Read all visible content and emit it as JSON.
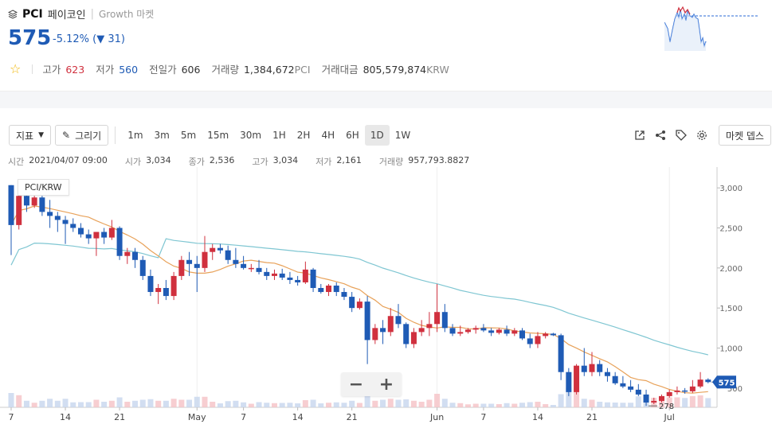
{
  "header": {
    "symbol": "PCI",
    "korean_name": "페이코인",
    "market_label": "Growth 마켓",
    "price": "575",
    "change_text": "-5.12% (",
    "change_arrow": "▼",
    "change_amount": "31)"
  },
  "stats": {
    "high_label": "고가",
    "high_value": "623",
    "low_label": "저가",
    "low_value": "560",
    "prev_label": "전일가",
    "prev_value": "606",
    "volume_label": "거래량",
    "volume_value": "1,384,672",
    "volume_unit": "PCI",
    "amount_label": "거래대금",
    "amount_value": "805,579,874",
    "amount_unit": "KRW"
  },
  "toolbar": {
    "indicator_label": "지표",
    "draw_label": "그리기",
    "intervals": [
      "1m",
      "3m",
      "5m",
      "15m",
      "30m",
      "1H",
      "2H",
      "4H",
      "6H",
      "1D",
      "1W"
    ],
    "active_interval": "1D",
    "market_depth_label": "마켓 뎁스"
  },
  "ohlc": {
    "time_label": "시간",
    "time_value": "2021/04/07 09:00",
    "open_label": "시가",
    "open_value": "3,034",
    "close_label": "종가",
    "close_value": "2,536",
    "high_label": "고가",
    "high_value": "3,034",
    "low_label": "저가",
    "low_value": "2,161",
    "volume_label": "거래량",
    "volume_value": "957,793.8827"
  },
  "chart_data": {
    "type": "candlestick",
    "pair_label": "PCI/KRW",
    "y_ticks": [
      "3,000",
      "2,500",
      "2,000",
      "1,500",
      "1,000",
      "500"
    ],
    "y_tick_values": [
      3000,
      2500,
      2000,
      1500,
      1000,
      500
    ],
    "x_ticks": [
      "7",
      "14",
      "21",
      "May",
      "7",
      "14",
      "21",
      "Jun",
      "7",
      "14",
      "21",
      "Jul"
    ],
    "x_tick_day_index": [
      0,
      7,
      14,
      24,
      30,
      37,
      44,
      55,
      61,
      68,
      75,
      85
    ],
    "current_price_label": "575",
    "current_price": 575,
    "min_marker_label": "278",
    "min_marker_value": 278,
    "candles": [
      [
        3034,
        3034,
        2161,
        2536
      ],
      [
        2536,
        3010,
        2480,
        2900
      ],
      [
        2900,
        2950,
        2700,
        2780
      ],
      [
        2780,
        2900,
        2750,
        2880
      ],
      [
        2880,
        2900,
        2650,
        2700
      ],
      [
        2700,
        2850,
        2500,
        2650
      ],
      [
        2650,
        2700,
        2450,
        2600
      ],
      [
        2600,
        2650,
        2300,
        2550
      ],
      [
        2550,
        2620,
        2450,
        2500
      ],
      [
        2500,
        2560,
        2380,
        2420
      ],
      [
        2420,
        2480,
        2300,
        2370
      ],
      [
        2370,
        2450,
        2150,
        2450
      ],
      [
        2450,
        2500,
        2300,
        2380
      ],
      [
        2380,
        2600,
        2350,
        2500
      ],
      [
        2500,
        2520,
        2100,
        2150
      ],
      [
        2150,
        2250,
        2050,
        2200
      ],
      [
        2200,
        2250,
        2000,
        2100
      ],
      [
        2100,
        2150,
        1850,
        1900
      ],
      [
        1900,
        1980,
        1650,
        1700
      ],
      [
        1700,
        1800,
        1550,
        1750
      ],
      [
        1750,
        1850,
        1600,
        1650
      ],
      [
        1650,
        1950,
        1600,
        1900
      ],
      [
        1900,
        2150,
        1850,
        2100
      ],
      [
        2100,
        2200,
        1900,
        2050
      ],
      [
        2050,
        2150,
        1700,
        2000
      ],
      [
        2000,
        2400,
        1950,
        2200
      ],
      [
        2200,
        2300,
        2100,
        2250
      ],
      [
        2250,
        2300,
        2180,
        2220
      ],
      [
        2220,
        2280,
        2050,
        2100
      ],
      [
        2100,
        2250,
        2000,
        2050
      ],
      [
        2050,
        2150,
        1980,
        2000
      ],
      [
        2000,
        2050,
        1950,
        2000
      ],
      [
        2000,
        2100,
        1920,
        1950
      ],
      [
        1950,
        2000,
        1850,
        1900
      ],
      [
        1900,
        1980,
        1850,
        1930
      ],
      [
        1930,
        1990,
        1850,
        1880
      ],
      [
        1880,
        1950,
        1800,
        1850
      ],
      [
        1850,
        1900,
        1780,
        1820
      ],
      [
        1820,
        2080,
        1800,
        1980
      ],
      [
        1980,
        2000,
        1700,
        1750
      ],
      [
        1750,
        1800,
        1680,
        1700
      ],
      [
        1700,
        1800,
        1650,
        1780
      ],
      [
        1780,
        1820,
        1650,
        1700
      ],
      [
        1700,
        1750,
        1600,
        1640
      ],
      [
        1640,
        1700,
        1450,
        1500
      ],
      [
        1500,
        1620,
        1480,
        1580
      ],
      [
        1580,
        1650,
        800,
        1100
      ],
      [
        1100,
        1300,
        1050,
        1250
      ],
      [
        1250,
        1350,
        1050,
        1200
      ],
      [
        1200,
        1500,
        1150,
        1400
      ],
      [
        1400,
        1550,
        1250,
        1300
      ],
      [
        1300,
        1320,
        1000,
        1050
      ],
      [
        1050,
        1250,
        1000,
        1200
      ],
      [
        1200,
        1350,
        1150,
        1250
      ],
      [
        1250,
        1450,
        1150,
        1300
      ],
      [
        1300,
        1800,
        1200,
        1450
      ],
      [
        1450,
        1550,
        1200,
        1250
      ],
      [
        1250,
        1300,
        1150,
        1180
      ],
      [
        1180,
        1280,
        1150,
        1200
      ],
      [
        1200,
        1250,
        1180,
        1230
      ],
      [
        1230,
        1280,
        1180,
        1250
      ],
      [
        1250,
        1300,
        1200,
        1220
      ],
      [
        1220,
        1250,
        1150,
        1190
      ],
      [
        1190,
        1250,
        1170,
        1230
      ],
      [
        1230,
        1280,
        1150,
        1180
      ],
      [
        1180,
        1250,
        1150,
        1220
      ],
      [
        1220,
        1250,
        1100,
        1120
      ],
      [
        1120,
        1180,
        1000,
        1050
      ],
      [
        1050,
        1200,
        1000,
        1150
      ],
      [
        1150,
        1200,
        1120,
        1180
      ],
      [
        1180,
        1190,
        1150,
        1160
      ],
      [
        1160,
        1180,
        600,
        700
      ],
      [
        700,
        750,
        400,
        450
      ],
      [
        450,
        800,
        420,
        780
      ],
      [
        780,
        1000,
        650,
        700
      ],
      [
        700,
        950,
        650,
        800
      ],
      [
        800,
        850,
        650,
        700
      ],
      [
        700,
        750,
        580,
        650
      ],
      [
        650,
        700,
        540,
        560
      ],
      [
        560,
        650,
        500,
        520
      ],
      [
        520,
        600,
        450,
        480
      ],
      [
        480,
        550,
        400,
        420
      ],
      [
        420,
        480,
        278,
        320
      ],
      [
        320,
        380,
        300,
        340
      ],
      [
        340,
        420,
        320,
        400
      ],
      [
        400,
        480,
        380,
        450
      ],
      [
        450,
        520,
        420,
        470
      ],
      [
        470,
        500,
        430,
        460
      ],
      [
        460,
        600,
        440,
        520
      ],
      [
        520,
        700,
        500,
        606
      ],
      [
        606,
        623,
        560,
        575
      ]
    ],
    "ma_short_color": "#e8a25a",
    "ma_long_color": "#7fc6d2",
    "up_color": "#d0303e",
    "down_color": "#1f5bb5"
  }
}
